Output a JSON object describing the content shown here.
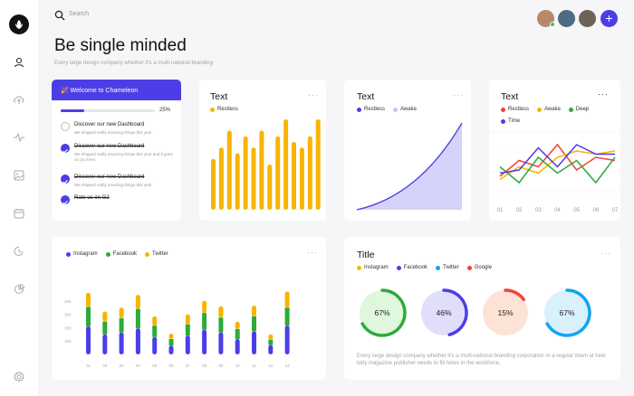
{
  "search": {
    "placeholder": "Search"
  },
  "header": {
    "title": "Be single minded",
    "subtitle": "Every large design company whether it's a multi-national branding",
    "add_label": "+"
  },
  "avatars": [
    {
      "color": "#b58a6b"
    },
    {
      "color": "#4d6b84"
    },
    {
      "color": "#6d6458"
    }
  ],
  "welcome": {
    "title": "🎉 Welcome to Chameleon",
    "progress": 25,
    "progress_label": "25%",
    "tasks": [
      {
        "title": "Discover our new Dashboard",
        "desc": "We shipped really amazing things this year",
        "done": false
      },
      {
        "title": "Discover our new Dashboard",
        "desc": "We shipped really amazing things this year and it goes on (no free)",
        "done": true
      },
      {
        "title": "Discover our new Dashboard",
        "desc": "We shipped really amazing things this year",
        "done": true
      },
      {
        "title": "Rate us on G2",
        "desc": "",
        "done": true
      }
    ]
  },
  "card_text1": {
    "title": "Text",
    "legend": [
      {
        "name": "Restless",
        "color": "#f7b500"
      }
    ],
    "values": [
      9,
      11,
      14,
      10,
      13,
      11,
      14,
      8,
      13,
      16,
      12,
      11,
      13,
      16
    ],
    "color": "#f7b500"
  },
  "card_text2": {
    "title": "Text",
    "legend": [
      {
        "name": "Restless",
        "color": "#4c3ee6"
      },
      {
        "name": "Awake",
        "color": "#c8c5f5"
      }
    ]
  },
  "card_text3": {
    "title": "Text",
    "legend": [
      {
        "name": "Restless",
        "color": "#f44336"
      },
      {
        "name": "Awake",
        "color": "#f7b500"
      },
      {
        "name": "Deep",
        "color": "#2eaa3a"
      },
      {
        "name": "Time",
        "color": "#4c3ee6"
      }
    ],
    "x": [
      "01",
      "02",
      "03",
      "04",
      "05",
      "06",
      "07"
    ],
    "series": [
      {
        "name": "Restless",
        "color": "#f44336",
        "values": [
          30,
          55,
          45,
          80,
          40,
          60,
          55
        ]
      },
      {
        "name": "Awake",
        "color": "#f7b500",
        "values": [
          25,
          45,
          35,
          60,
          70,
          65,
          70
        ]
      },
      {
        "name": "Deep",
        "color": "#2eaa3a",
        "values": [
          45,
          20,
          60,
          35,
          55,
          20,
          60
        ]
      },
      {
        "name": "Time",
        "color": "#4c3ee6",
        "values": [
          35,
          40,
          75,
          45,
          80,
          65,
          65
        ]
      }
    ]
  },
  "stacked": {
    "legend": [
      {
        "name": "Instagram",
        "color": "#4c3ee6"
      },
      {
        "name": "Facebook",
        "color": "#2eaa3a"
      },
      {
        "name": "Twitter",
        "color": "#f7b500"
      }
    ],
    "y_ticks": [
      "100",
      "200",
      "300",
      "400"
    ],
    "categories": [
      "01",
      "02",
      "03",
      "04",
      "05",
      "06",
      "07",
      "08",
      "09",
      "10",
      "11",
      "12",
      "13"
    ],
    "series": [
      {
        "name": "Instagram",
        "color": "#4c3ee6",
        "values": [
          210,
          150,
          165,
          195,
          130,
          65,
          140,
          185,
          165,
          115,
          175,
          70,
          215
        ]
      },
      {
        "name": "Facebook",
        "color": "#2eaa3a",
        "values": [
          145,
          95,
          105,
          145,
          85,
          50,
          85,
          125,
          110,
          75,
          110,
          40,
          135
        ]
      },
      {
        "name": "Twitter",
        "color": "#f7b500",
        "values": [
          105,
          75,
          80,
          105,
          70,
          40,
          75,
          90,
          85,
          55,
          80,
          40,
          120
        ]
      }
    ]
  },
  "title_card": {
    "title": "Title",
    "legend": [
      {
        "name": "Instagram",
        "color": "#f7b500"
      },
      {
        "name": "Facebook",
        "color": "#4c3ee6"
      },
      {
        "name": "Twitter",
        "color": "#12a4f5"
      },
      {
        "name": "Google",
        "color": "#f44336"
      }
    ],
    "gauges": [
      {
        "label": "67%",
        "value": 0.67,
        "color": "#2eaa3a",
        "fill": "#dff7dd"
      },
      {
        "label": "46%",
        "value": 0.46,
        "color": "#4c3ee6",
        "fill": "#e1defb"
      },
      {
        "label": "15%",
        "value": 0.15,
        "color": "#f44336",
        "fill": "#fde2d6"
      },
      {
        "label": "67%",
        "value": 0.67,
        "color": "#12a4f5",
        "fill": "#d8f1fd"
      }
    ],
    "description": "Every large design company whether it's a multi-national branding corporation or a regular down at heel tatty magazine publisher needs to fill holes in the workforce."
  }
}
